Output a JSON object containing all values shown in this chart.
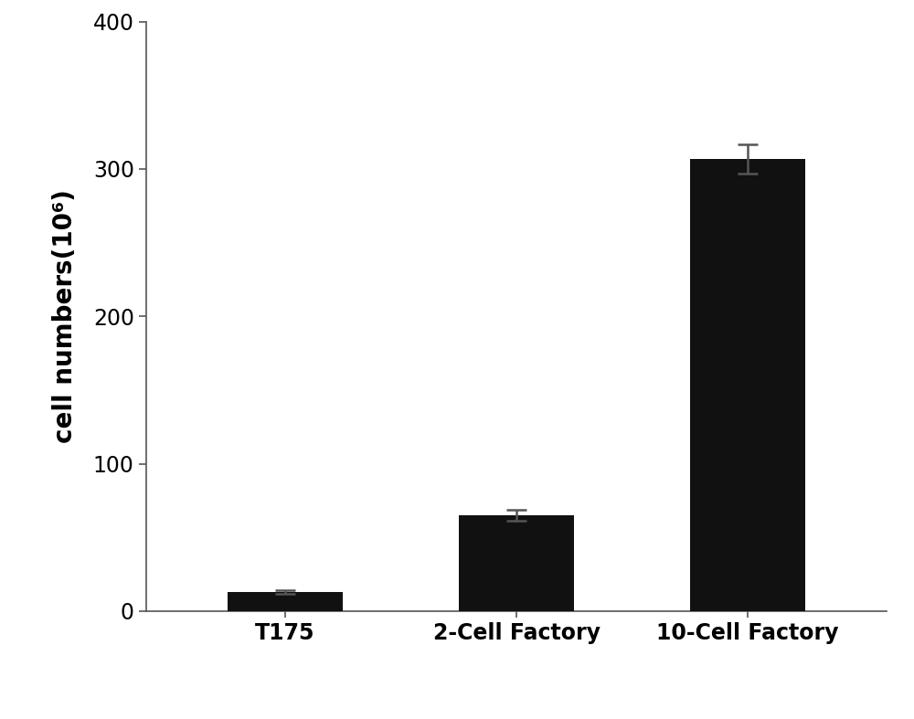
{
  "categories": [
    "T175",
    "2-Cell Factory",
    "10-Cell Factory"
  ],
  "values": [
    13,
    65,
    307
  ],
  "errors": [
    1.5,
    3.5,
    10
  ],
  "bar_color": "#111111",
  "bar_width": 0.5,
  "ylabel": "cell numbers(10⁶)",
  "ylim": [
    0,
    400
  ],
  "yticks": [
    0,
    100,
    200,
    300,
    400
  ],
  "background_color": "#ffffff",
  "ylabel_fontsize": 20,
  "tick_fontsize": 17,
  "xtick_fontsize": 17,
  "error_capsize": 8,
  "error_linewidth": 1.8,
  "error_color": "#555555",
  "spine_color": "#555555"
}
